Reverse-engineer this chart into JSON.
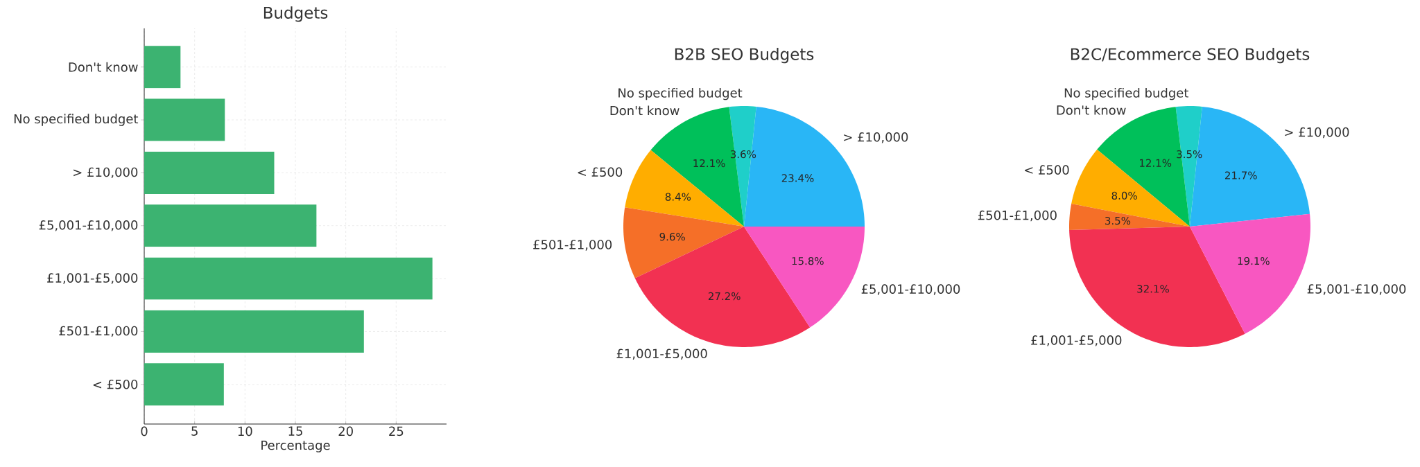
{
  "chart_data": [
    {
      "type": "bar",
      "orientation": "horizontal",
      "title": "Budgets",
      "xlabel": "Percentage",
      "categories": [
        "Don't know",
        "No specified budget",
        "> £10,000",
        "£5,001-£10,000",
        "£1,001-£5,000",
        "£501-£1,000",
        "< £500"
      ],
      "values": [
        3.6,
        8.0,
        12.9,
        17.1,
        28.6,
        21.8,
        7.9
      ],
      "color": "#3cb371",
      "xlim": [
        0,
        30
      ],
      "xticks": [
        0,
        5,
        10,
        15,
        20,
        25
      ],
      "grid": true
    },
    {
      "type": "pie",
      "title": "B2B SEO Budgets",
      "categories": [
        "> £10,000",
        "No specified budget",
        "Don't know",
        "< £500",
        "£501-£1,000",
        "£1,001-£5,000",
        "£5,001-£10,000"
      ],
      "values": [
        23.4,
        3.6,
        12.1,
        8.4,
        9.6,
        27.2,
        15.8
      ],
      "value_labels": [
        "23.4%",
        "3.6%",
        "12.1%",
        "8.4%",
        "9.6%",
        "27.2%",
        "15.8%"
      ],
      "colors": [
        "#29b6f6",
        "#1fcfc9",
        "#00c05a",
        "#ffad00",
        "#f56f28",
        "#f23152",
        "#f857c1"
      ]
    },
    {
      "type": "pie",
      "title": "B2C/Ecommerce SEO Budgets",
      "categories": [
        "> £10,000",
        "No specified budget",
        "Don't know",
        "< £500",
        "£501-£1,000",
        "£1,001-£5,000",
        "£5,001-£10,000"
      ],
      "values": [
        21.7,
        3.5,
        12.1,
        8.0,
        3.5,
        32.1,
        19.1
      ],
      "value_labels": [
        "21.7%",
        "3.5%",
        "12.1%",
        "8.0%",
        "3.5%",
        "32.1%",
        "19.1%"
      ],
      "colors": [
        "#29b6f6",
        "#1fcfc9",
        "#00c05a",
        "#ffad00",
        "#f56f28",
        "#f23152",
        "#f857c1"
      ]
    }
  ]
}
